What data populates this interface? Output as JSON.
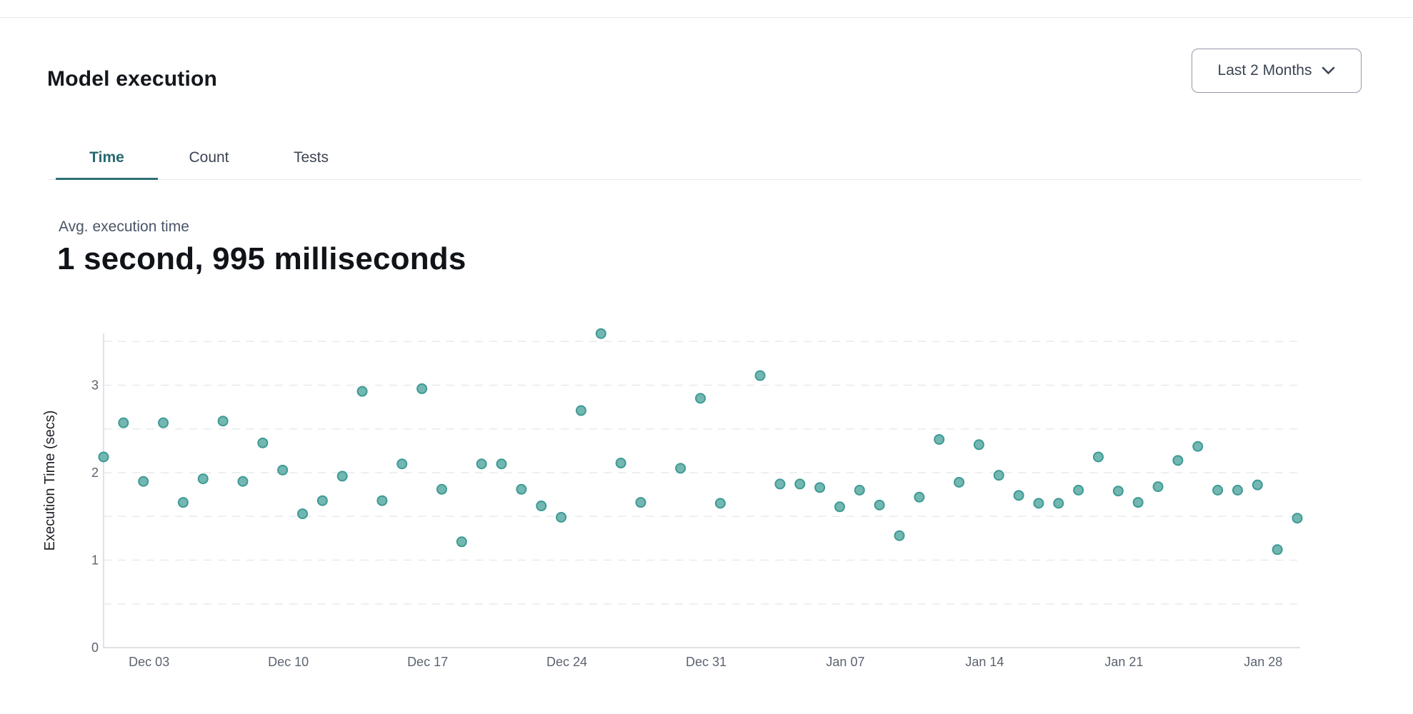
{
  "page": {
    "title": "Model execution"
  },
  "controls": {
    "date_range_label": "Last 2 Months",
    "chevron_icon": "chevron-down"
  },
  "tabs": [
    {
      "label": "Time",
      "active": true
    },
    {
      "label": "Count",
      "active": false
    },
    {
      "label": "Tests",
      "active": false
    }
  ],
  "stat": {
    "label": "Avg. execution time",
    "value": "1 second, 995 milliseconds"
  },
  "chart_data": {
    "type": "scatter",
    "title": "",
    "xlabel": "",
    "ylabel": "Execution Time (secs)",
    "ylim": [
      0,
      3.6
    ],
    "y_ticks": [
      0,
      1,
      2,
      3
    ],
    "grid": "horizontal dashed lines every 0.5 secs",
    "legend": "none",
    "x_range_days": [
      0,
      60
    ],
    "x_ticks": [
      {
        "label": "Dec 03",
        "day": 2
      },
      {
        "label": "Dec 10",
        "day": 9
      },
      {
        "label": "Dec 17",
        "day": 16
      },
      {
        "label": "Dec 24",
        "day": 23
      },
      {
        "label": "Dec 31",
        "day": 30
      },
      {
        "label": "Jan 07",
        "day": 37
      },
      {
        "label": "Jan 14",
        "day": 44
      },
      {
        "label": "Jan 21",
        "day": 51
      },
      {
        "label": "Jan 28",
        "day": 58
      }
    ],
    "colors": {
      "point_fill": "#73b7b2",
      "point_stroke": "#3e9a94",
      "grid_line": "#e9eaee",
      "axis_line": "#d7d9dd",
      "tick_text": "#5b6370",
      "axis_title_text": "#1c2026",
      "accent_teal": "#2e7074"
    },
    "series": [
      {
        "name": "Avg execution time (secs)",
        "points": [
          {
            "date": "Dec 01",
            "day": 0,
            "secs": 2.18
          },
          {
            "date": "Dec 02",
            "day": 1,
            "secs": 2.57
          },
          {
            "date": "Dec 03",
            "day": 2,
            "secs": 1.9
          },
          {
            "date": "Dec 04",
            "day": 3,
            "secs": 2.57
          },
          {
            "date": "Dec 05",
            "day": 4,
            "secs": 1.66
          },
          {
            "date": "Dec 06",
            "day": 5,
            "secs": 1.93
          },
          {
            "date": "Dec 07",
            "day": 6,
            "secs": 2.59
          },
          {
            "date": "Dec 08",
            "day": 7,
            "secs": 1.9
          },
          {
            "date": "Dec 09",
            "day": 8,
            "secs": 2.34
          },
          {
            "date": "Dec 10",
            "day": 9,
            "secs": 2.03
          },
          {
            "date": "Dec 11",
            "day": 10,
            "secs": 1.53
          },
          {
            "date": "Dec 12",
            "day": 11,
            "secs": 1.68
          },
          {
            "date": "Dec 13",
            "day": 12,
            "secs": 1.96
          },
          {
            "date": "Dec 14",
            "day": 13,
            "secs": 2.93
          },
          {
            "date": "Dec 15",
            "day": 14,
            "secs": 1.68
          },
          {
            "date": "Dec 16",
            "day": 15,
            "secs": 2.1
          },
          {
            "date": "Dec 17",
            "day": 16,
            "secs": 2.96
          },
          {
            "date": "Dec 18",
            "day": 17,
            "secs": 1.81
          },
          {
            "date": "Dec 19",
            "day": 18,
            "secs": 1.21
          },
          {
            "date": "Dec 20",
            "day": 19,
            "secs": 2.1
          },
          {
            "date": "Dec 21",
            "day": 20,
            "secs": 2.1
          },
          {
            "date": "Dec 22",
            "day": 21,
            "secs": 1.81
          },
          {
            "date": "Dec 23",
            "day": 22,
            "secs": 1.62
          },
          {
            "date": "Dec 24",
            "day": 23,
            "secs": 1.49
          },
          {
            "date": "Dec 25",
            "day": 24,
            "secs": 2.71
          },
          {
            "date": "Dec 26",
            "day": 25,
            "secs": 3.59
          },
          {
            "date": "Dec 27",
            "day": 26,
            "secs": 2.11
          },
          {
            "date": "Dec 28",
            "day": 27,
            "secs": 1.66
          },
          {
            "date": "Dec 30",
            "day": 29,
            "secs": 2.05
          },
          {
            "date": "Dec 31",
            "day": 30,
            "secs": 2.85
          },
          {
            "date": "Jan 01",
            "day": 31,
            "secs": 1.65
          },
          {
            "date": "Jan 03",
            "day": 33,
            "secs": 3.11
          },
          {
            "date": "Jan 04",
            "day": 34,
            "secs": 1.87
          },
          {
            "date": "Jan 05",
            "day": 35,
            "secs": 1.87
          },
          {
            "date": "Jan 06",
            "day": 36,
            "secs": 1.83
          },
          {
            "date": "Jan 07",
            "day": 37,
            "secs": 1.61
          },
          {
            "date": "Jan 08",
            "day": 38,
            "secs": 1.8
          },
          {
            "date": "Jan 09",
            "day": 39,
            "secs": 1.63
          },
          {
            "date": "Jan 10",
            "day": 40,
            "secs": 1.28
          },
          {
            "date": "Jan 11",
            "day": 41,
            "secs": 1.72
          },
          {
            "date": "Jan 12",
            "day": 42,
            "secs": 2.38
          },
          {
            "date": "Jan 13",
            "day": 43,
            "secs": 1.89
          },
          {
            "date": "Jan 14",
            "day": 44,
            "secs": 2.32
          },
          {
            "date": "Jan 15",
            "day": 45,
            "secs": 1.97
          },
          {
            "date": "Jan 16",
            "day": 46,
            "secs": 1.74
          },
          {
            "date": "Jan 17",
            "day": 47,
            "secs": 1.65
          },
          {
            "date": "Jan 18",
            "day": 48,
            "secs": 1.65
          },
          {
            "date": "Jan 19",
            "day": 49,
            "secs": 1.8
          },
          {
            "date": "Jan 20",
            "day": 50,
            "secs": 2.18
          },
          {
            "date": "Jan 21",
            "day": 51,
            "secs": 1.79
          },
          {
            "date": "Jan 22",
            "day": 52,
            "secs": 1.66
          },
          {
            "date": "Jan 23",
            "day": 53,
            "secs": 1.84
          },
          {
            "date": "Jan 24",
            "day": 54,
            "secs": 2.14
          },
          {
            "date": "Jan 25",
            "day": 55,
            "secs": 2.3
          },
          {
            "date": "Jan 26",
            "day": 56,
            "secs": 1.8
          },
          {
            "date": "Jan 27",
            "day": 57,
            "secs": 1.8
          },
          {
            "date": "Jan 28",
            "day": 58,
            "secs": 1.86
          },
          {
            "date": "Jan 29",
            "day": 59,
            "secs": 1.12
          },
          {
            "date": "Jan 30",
            "day": 60,
            "secs": 1.48
          }
        ]
      }
    ]
  }
}
